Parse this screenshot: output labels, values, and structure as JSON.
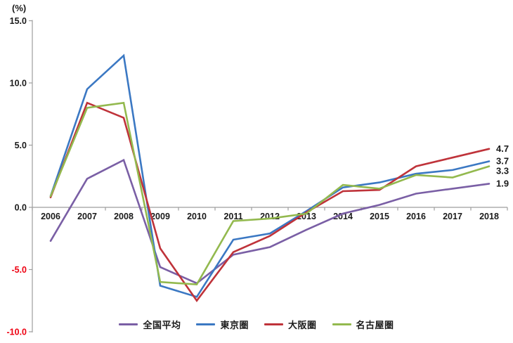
{
  "chart_data": {
    "type": "line",
    "title": "",
    "unit_label": "(%)",
    "xlabel": "",
    "ylabel": "(%)",
    "categories": [
      "2006",
      "2007",
      "2008",
      "2009",
      "2010",
      "2011",
      "2012",
      "2013",
      "2014",
      "2015",
      "2016",
      "2017",
      "2018"
    ],
    "series": [
      {
        "name": "全国平均",
        "color": "#7a5fa5",
        "values": [
          -2.7,
          2.3,
          3.8,
          -4.8,
          -6.1,
          -3.8,
          -3.2,
          -1.8,
          -0.5,
          0.2,
          1.1,
          1.5,
          1.9
        ],
        "end_label": "1.9"
      },
      {
        "name": "東京圏",
        "color": "#3b78c3",
        "values": [
          0.9,
          9.5,
          12.2,
          -6.3,
          -7.2,
          -2.6,
          -2.1,
          -0.3,
          1.6,
          2.0,
          2.7,
          3.0,
          3.7
        ],
        "end_label": "3.7"
      },
      {
        "name": "大阪圏",
        "color": "#bf333a",
        "values": [
          0.8,
          8.4,
          7.2,
          -3.3,
          -7.5,
          -3.6,
          -2.3,
          -0.4,
          1.3,
          1.4,
          3.3,
          4.0,
          4.7
        ],
        "end_label": "4.7"
      },
      {
        "name": "名古屋圏",
        "color": "#93b94e",
        "values": [
          0.9,
          8.0,
          8.4,
          -6.0,
          -6.2,
          -1.1,
          -0.9,
          -0.5,
          1.8,
          1.5,
          2.6,
          2.4,
          3.3
        ],
        "end_label": "3.3"
      }
    ],
    "ylim": [
      -10.0,
      15.0
    ],
    "yticks": [
      15.0,
      10.0,
      5.0,
      0.0,
      -5.0,
      -10.0
    ],
    "ytick_labels": [
      "15.0",
      "10.0",
      "5.0",
      "0.0",
      "-5.0",
      "-10.0"
    ],
    "grid": false,
    "legend_position": "bottom",
    "colors": {
      "axis": "#9e9e9e",
      "tick_label": "#1a1a1a",
      "negative_tick_label": "#ee0011",
      "end_label": "#1a1a1a"
    }
  }
}
